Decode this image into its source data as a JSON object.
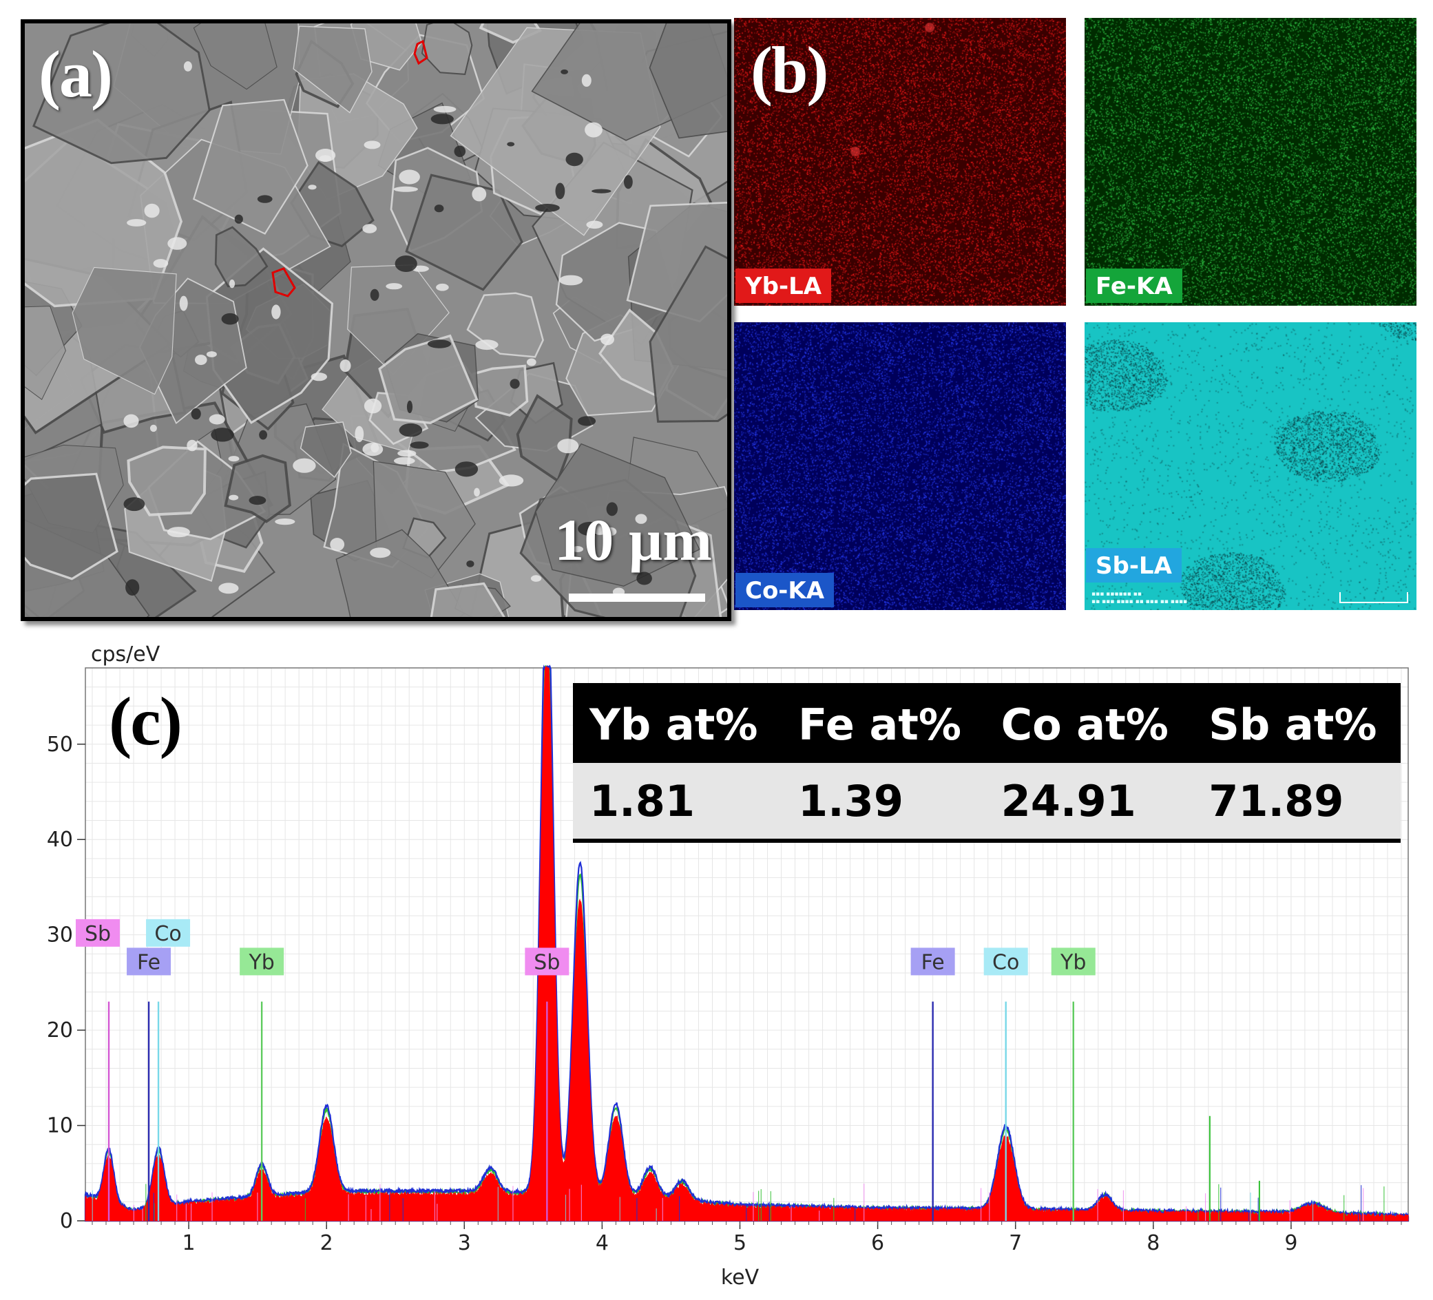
{
  "panel_a": {
    "tag": "(a)",
    "scale_bar_label": "10 µm"
  },
  "panel_b": {
    "tag": "(b)",
    "maps": [
      {
        "label": "Yb-LA",
        "base_color": "#3a0000",
        "dot_color": "#ff1a1a",
        "label_bg": "#e11919",
        "label_fg": "#ffffff"
      },
      {
        "label": "Fe-KA",
        "base_color": "#002b00",
        "dot_color": "#33d04a",
        "label_bg": "#14a53a",
        "label_fg": "#ffffff"
      },
      {
        "label": "Co-KA",
        "base_color": "#00005a",
        "dot_color": "#2a40ff",
        "label_bg": "#1b56c8",
        "label_fg": "#ffffff"
      },
      {
        "label": "Sb-LA",
        "base_color": "#18c4c4",
        "dot_color": "#0a3a40",
        "label_bg": "#22a6df",
        "label_fg": "#ffffff"
      }
    ]
  },
  "panel_c": {
    "tag": "(c)",
    "table": {
      "headers": [
        "Yb at%",
        "Fe at%",
        "Co at%",
        "Sb at%"
      ],
      "values": [
        "1.81",
        "1.39",
        "24.91",
        "71.89"
      ]
    }
  },
  "chart_data": {
    "type": "line",
    "title": "",
    "xlabel": "keV",
    "ylabel": "cps/eV",
    "xlim": [
      0.25,
      9.85
    ],
    "ylim": [
      0,
      58
    ],
    "x_ticks": [
      1,
      2,
      3,
      4,
      5,
      6,
      7,
      8,
      9
    ],
    "y_ticks": [
      0,
      10,
      20,
      30,
      40,
      50
    ],
    "grid": true,
    "background_level": [
      [
        0.25,
        2.5
      ],
      [
        0.6,
        1.0
      ],
      [
        1.0,
        1.8
      ],
      [
        2.0,
        2.8
      ],
      [
        3.0,
        2.8
      ],
      [
        4.0,
        2.6
      ],
      [
        5.0,
        1.5
      ],
      [
        6.0,
        1.2
      ],
      [
        7.0,
        1.1
      ],
      [
        8.0,
        0.9
      ],
      [
        9.0,
        0.8
      ],
      [
        9.85,
        0.5
      ]
    ],
    "peaks": [
      {
        "center": 0.42,
        "height": 5.0,
        "width": 0.035
      },
      {
        "center": 0.78,
        "height": 5.5,
        "width": 0.04
      },
      {
        "center": 1.53,
        "height": 3.0,
        "width": 0.04
      },
      {
        "center": 2.0,
        "height": 8.0,
        "width": 0.05
      },
      {
        "center": 3.19,
        "height": 2.2,
        "width": 0.05
      },
      {
        "center": 3.6,
        "height": 58.0,
        "width": 0.045
      },
      {
        "center": 3.84,
        "height": 31.0,
        "width": 0.05
      },
      {
        "center": 4.1,
        "height": 8.5,
        "width": 0.05
      },
      {
        "center": 4.35,
        "height": 2.8,
        "width": 0.05
      },
      {
        "center": 4.58,
        "height": 1.8,
        "width": 0.05
      },
      {
        "center": 6.93,
        "height": 7.8,
        "width": 0.06
      },
      {
        "center": 7.65,
        "height": 1.5,
        "width": 0.05
      },
      {
        "center": 9.16,
        "height": 0.9,
        "width": 0.08
      }
    ],
    "series": [
      {
        "color": "#ff0000"
      },
      {
        "color": "#1f2fd6"
      },
      {
        "color": "#2fbf2f"
      }
    ],
    "element_markers": [
      {
        "label": "Sb",
        "x": 0.42,
        "height": 23,
        "line_color": "#d458d4",
        "bg": "#f08cf0",
        "row": 0
      },
      {
        "label": "Co",
        "x": 0.78,
        "height": 23,
        "line_color": "#78d8e8",
        "bg": "#a8eaf6",
        "row": 0
      },
      {
        "label": "Fe",
        "x": 0.71,
        "height": 23,
        "line_color": "#2b2bb0",
        "bg": "#a6a0f4",
        "row": 1
      },
      {
        "label": "Yb",
        "x": 1.53,
        "height": 23,
        "line_color": "#5ecb5e",
        "bg": "#96e896",
        "row": 1
      },
      {
        "label": "Sb",
        "x": 3.6,
        "height": 23,
        "line_color": "#d458d4",
        "bg": "#f08cf0",
        "row": 1
      },
      {
        "label": "Fe",
        "x": 6.4,
        "height": 23,
        "line_color": "#2b2bb0",
        "bg": "#a6a0f4",
        "row": 1
      },
      {
        "label": "Co",
        "x": 6.93,
        "height": 23,
        "line_color": "#78d8e8",
        "bg": "#a8eaf6",
        "row": 1
      },
      {
        "label": "Yb",
        "x": 7.42,
        "height": 23,
        "line_color": "#5ecb5e",
        "bg": "#96e896",
        "row": 1
      }
    ]
  }
}
